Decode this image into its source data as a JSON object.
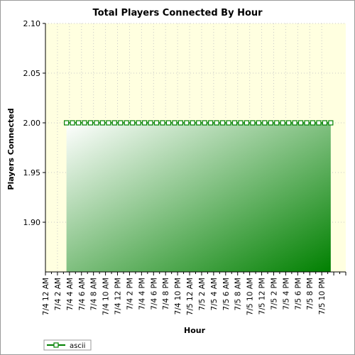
{
  "chart_data": {
    "type": "area",
    "title": "Total Players Connected By Hour",
    "xlabel": "Hour",
    "ylabel": "Players Connected",
    "ylim": [
      1.85,
      2.1
    ],
    "y_ticks": [
      "2.10",
      "2.05",
      "2.00",
      "1.95",
      "1.90"
    ],
    "y_tick_values": [
      2.1,
      2.05,
      2.0,
      1.95,
      1.9
    ],
    "x_tick_labels": [
      "7/4 12 AM",
      "7/4 2 AM",
      "7/4 4 AM",
      "7/4 6 AM",
      "7/4 8 AM",
      "7/4 10 AM",
      "7/4 12 PM",
      "7/4 2 PM",
      "7/4 4 PM",
      "7/4 6 PM",
      "7/4 8 PM",
      "7/4 10 PM",
      "7/5 12 AM",
      "7/5 2 AM",
      "7/5 4 AM",
      "7/5 6 AM",
      "7/5 8 AM",
      "7/5 10 AM",
      "7/5 12 PM",
      "7/5 2 PM",
      "7/5 4 PM",
      "7/5 6 PM",
      "7/5 8 PM",
      "7/5 10 PM"
    ],
    "x_hours_range": [
      0,
      50
    ],
    "series": [
      {
        "name": "ascii",
        "color": "#008000",
        "x_hours": [
          3.5,
          4.5,
          5.5,
          6.5,
          7.5,
          8.5,
          9.5,
          10.5,
          11.5,
          12.5,
          13.5,
          14.5,
          15.5,
          16.5,
          17.5,
          18.5,
          19.5,
          20.5,
          21.5,
          22.5,
          23.5,
          24.5,
          25.5,
          26.5,
          27.5,
          28.5,
          29.5,
          30.5,
          31.5,
          32.5,
          33.5,
          34.5,
          35.5,
          36.5,
          37.5,
          38.5,
          39.5,
          40.5,
          41.5,
          42.5,
          43.5,
          44.5,
          45.5,
          46.5,
          47.5
        ],
        "values": [
          2,
          2,
          2,
          2,
          2,
          2,
          2,
          2,
          2,
          2,
          2,
          2,
          2,
          2,
          2,
          2,
          2,
          2,
          2,
          2,
          2,
          2,
          2,
          2,
          2,
          2,
          2,
          2,
          2,
          2,
          2,
          2,
          2,
          2,
          2,
          2,
          2,
          2,
          2,
          2,
          2,
          2,
          2,
          2,
          2
        ]
      }
    ],
    "legend_position": "bottom-left",
    "grid": true
  },
  "colors": {
    "plot_background": "#ffffe0",
    "grid": "#c8c8c8",
    "fill_light": "#ffffff",
    "fill_dark": "#008000"
  }
}
